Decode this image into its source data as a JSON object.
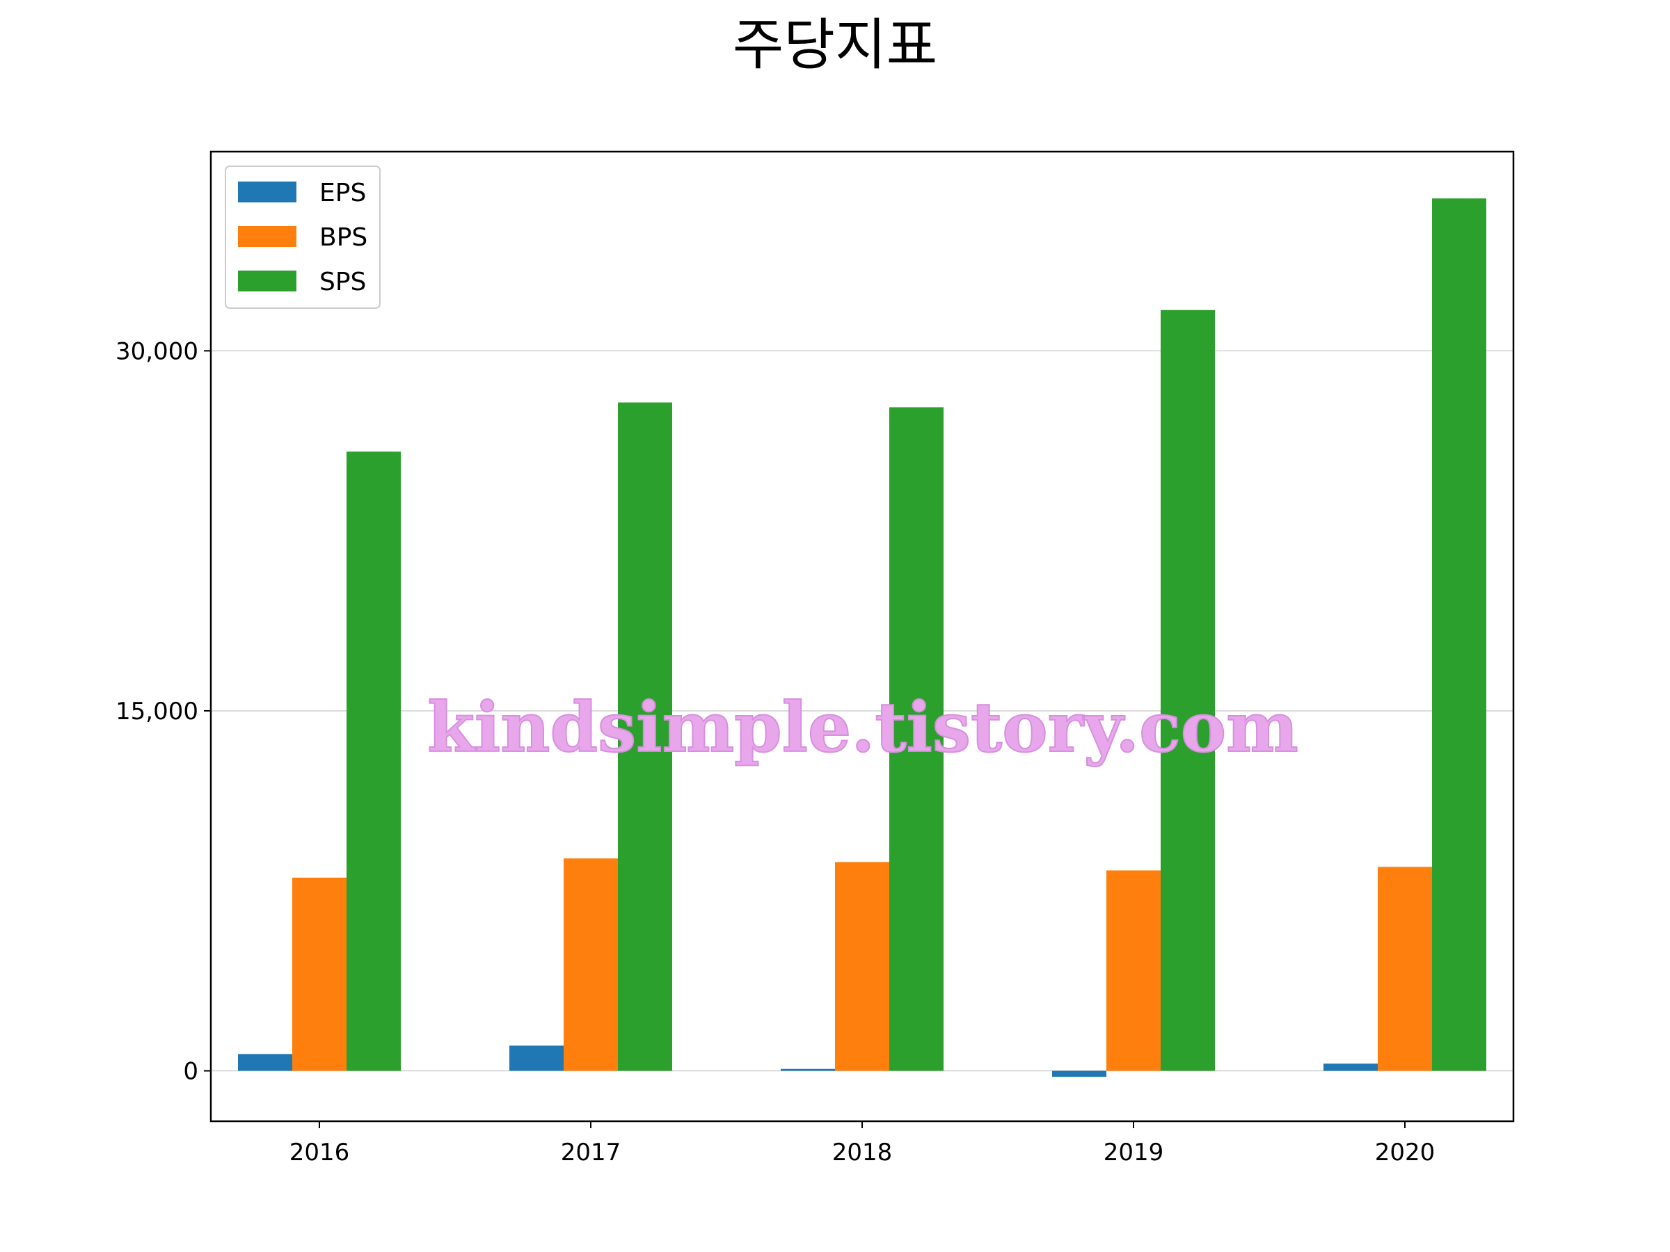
{
  "chart_data": {
    "type": "bar",
    "title": "주당지표",
    "xlabel": "",
    "ylabel": "",
    "categories": [
      "2016",
      "2017",
      "2018",
      "2019",
      "2020"
    ],
    "series": [
      {
        "name": "EPS",
        "color": "#1f77b4",
        "values": [
          700,
          1050,
          80,
          -250,
          300
        ]
      },
      {
        "name": "BPS",
        "color": "#ff7f0e",
        "values": [
          8050,
          8850,
          8700,
          8350,
          8500
        ]
      },
      {
        "name": "SPS",
        "color": "#2ca02c",
        "values": [
          25800,
          27850,
          27650,
          31700,
          36350
        ]
      }
    ],
    "ylim": [
      -2100,
      38300
    ],
    "yticks": [
      0,
      15000,
      30000
    ],
    "ytick_labels": [
      "0",
      "15,000",
      "30,000"
    ],
    "grid": "y",
    "legend_position": "upper left"
  },
  "watermark": "kindsimple.tistory.com"
}
